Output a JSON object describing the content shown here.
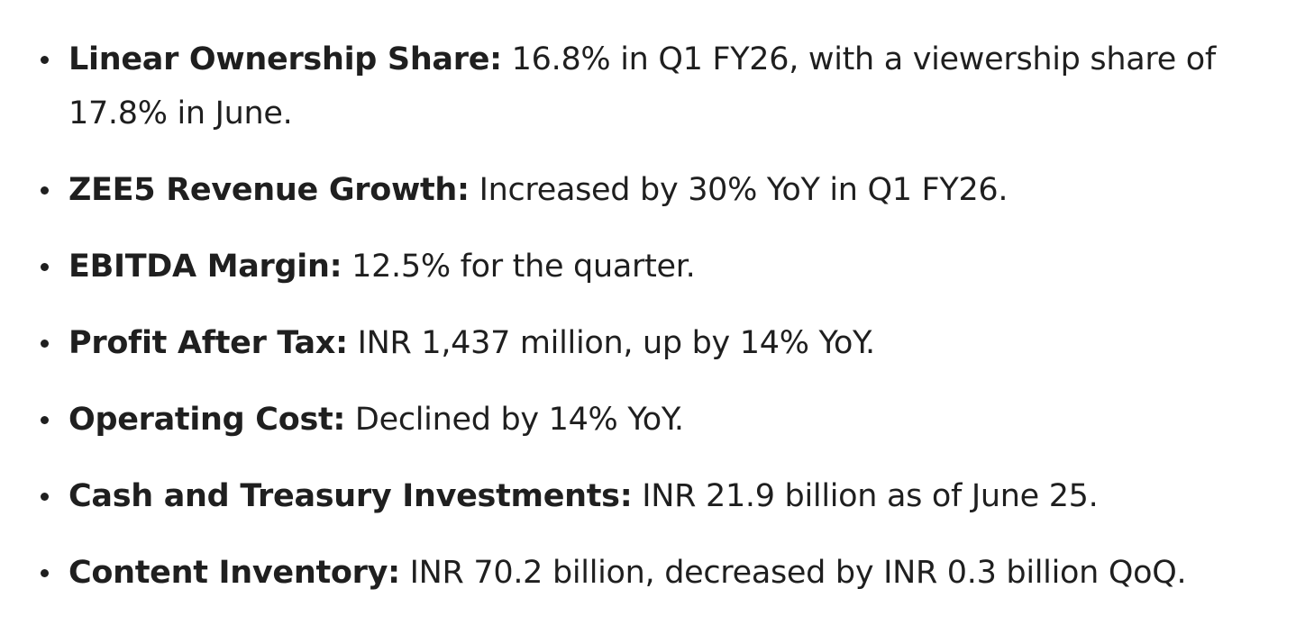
{
  "items": [
    {
      "label": "Linear Ownership Share:",
      "text": " 16.8% in Q1 FY26, with a viewership share of 17.8% in June."
    },
    {
      "label": "ZEE5 Revenue Growth:",
      "text": " Increased by 30% YoY in Q1 FY26."
    },
    {
      "label": "EBITDA Margin:",
      "text": " 12.5% for the quarter."
    },
    {
      "label": "Profit After Tax:",
      "text": " INR 1,437 million, up by 14% YoY."
    },
    {
      "label": "Operating Cost:",
      "text": " Declined by 14% YoY."
    },
    {
      "label": "Cash and Treasury Investments:",
      "text": " INR 21.9 billion as of June 25."
    },
    {
      "label": "Content Inventory:",
      "text": " INR 70.2 billion, decreased by INR 0.3 billion QoQ."
    }
  ]
}
